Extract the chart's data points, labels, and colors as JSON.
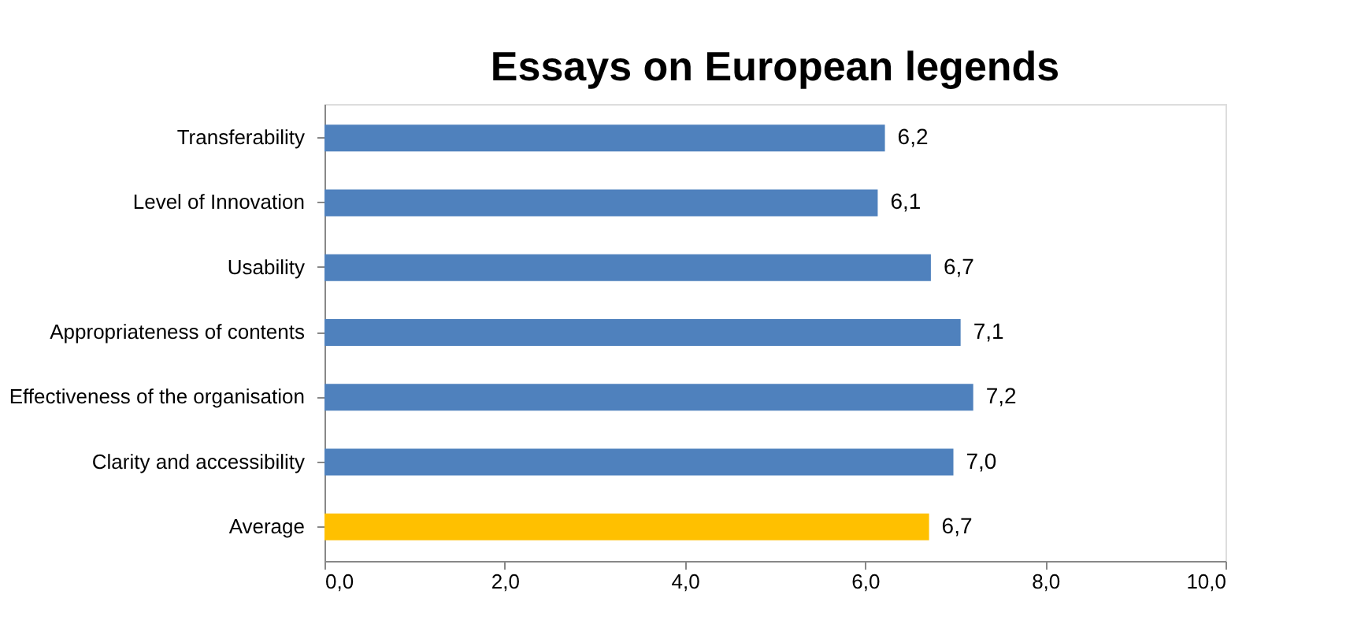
{
  "chart_data": {
    "type": "bar",
    "orientation": "horizontal",
    "title": "Essays on European legends",
    "categories": [
      "Transferability",
      "Level of Innovation",
      "Usability",
      "Appropriateness of contents",
      "Effectiveness of the organisation",
      "Clarity and accessibility",
      "Average"
    ],
    "values": [
      6.22,
      6.14,
      6.73,
      7.06,
      7.2,
      6.98,
      6.71
    ],
    "value_labels": [
      "6,2",
      "6,1",
      "6,7",
      "7,1",
      "7,2",
      "7,0",
      "6,7"
    ],
    "colors": [
      "#4f81bd",
      "#4f81bd",
      "#4f81bd",
      "#4f81bd",
      "#4f81bd",
      "#4f81bd",
      "#ffc000"
    ],
    "xlim": [
      0,
      10
    ],
    "xticks": [
      {
        "value": 0,
        "label": "0,0"
      },
      {
        "value": 2,
        "label": "2,0"
      },
      {
        "value": 4,
        "label": "4,0"
      },
      {
        "value": 6,
        "label": "6,0"
      },
      {
        "value": 8,
        "label": "8,0"
      },
      {
        "value": 10,
        "label": "10,0"
      }
    ],
    "grid": false
  }
}
